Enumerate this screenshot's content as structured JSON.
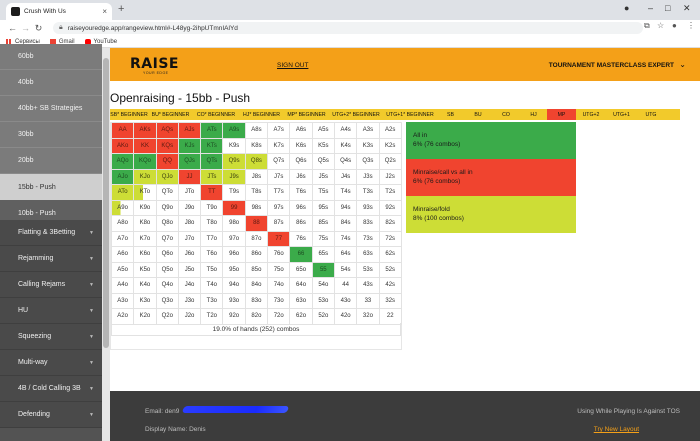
{
  "browser": {
    "tab_title": "Crush With Us",
    "tab_close": "×",
    "new_tab": "+",
    "url": "raiseyouredge.app/rangeview.html#-L48yg-2ihpUTmnIAlYd",
    "bookmarks": [
      "Сервисы",
      "Gmail",
      "YouTube"
    ]
  },
  "sidebar": {
    "items": [
      {
        "label": "60bb",
        "kind": "sub"
      },
      {
        "label": "40bb",
        "kind": "sub"
      },
      {
        "label": "40bb+ SB Strategies",
        "kind": "sub"
      },
      {
        "label": "30bb",
        "kind": "sub"
      },
      {
        "label": "20bb",
        "kind": "sub"
      },
      {
        "label": "15bb - Push",
        "kind": "active"
      },
      {
        "label": "10bb - Push",
        "kind": "dark"
      },
      {
        "label": "Flatting & 3Betting",
        "kind": "main"
      },
      {
        "label": "Rejamming",
        "kind": "main"
      },
      {
        "label": "Calling Rejams",
        "kind": "main"
      },
      {
        "label": "HU",
        "kind": "main"
      },
      {
        "label": "Squeezing",
        "kind": "main"
      },
      {
        "label": "Multi-way",
        "kind": "main"
      },
      {
        "label": "4B / Cold Calling 3B",
        "kind": "main"
      },
      {
        "label": "Defending",
        "kind": "main"
      }
    ]
  },
  "header": {
    "logo_text": "RAISE",
    "logo_sub": "YOUR EDGE",
    "signout": "SIGN OUT",
    "menu": "TOURNAMENT MASTERCLASS EXPERT"
  },
  "main": {
    "title": "Openraising - 15bb - Push",
    "positions": [
      {
        "label": "SB* BEGINNER",
        "w": 38
      },
      {
        "label": "BU* BEGINNER",
        "w": 45
      },
      {
        "label": "CO* BEGINNER",
        "w": 46
      },
      {
        "label": "HJ* BEGINNER",
        "w": 45
      },
      {
        "label": "MP* BEGINNER",
        "w": 45
      },
      {
        "label": "UTG+2* BEGINNER",
        "w": 54
      },
      {
        "label": "UTG+1* BEGINNER",
        "w": 54
      },
      {
        "label": "SB",
        "w": 27
      },
      {
        "label": "BU",
        "w": 28
      },
      {
        "label": "CO",
        "w": 28
      },
      {
        "label": "HJ",
        "w": 27
      },
      {
        "label": "MP",
        "w": 29,
        "active": true
      },
      {
        "label": "UTG+2",
        "w": 30
      },
      {
        "label": "UTG+1",
        "w": 31
      },
      {
        "label": "UTG",
        "w": 28
      }
    ],
    "summary": "19.0% of hands (252) combos"
  },
  "grid": [
    [
      "AA",
      "AKs",
      "AQs",
      "AJs",
      "ATs",
      "A9s",
      "A8s",
      "A7s",
      "A6s",
      "A5s",
      "A4s",
      "A3s",
      "A2s"
    ],
    [
      "AKo",
      "KK",
      "KQs",
      "KJs",
      "KTs",
      "K9s",
      "K8s",
      "K7s",
      "K6s",
      "K5s",
      "K4s",
      "K3s",
      "K2s"
    ],
    [
      "AQo",
      "KQo",
      "QQ",
      "QJs",
      "QTs",
      "Q9s",
      "Q8s",
      "Q7s",
      "Q6s",
      "Q5s",
      "Q4s",
      "Q3s",
      "Q2s"
    ],
    [
      "AJo",
      "KJo",
      "QJo",
      "JJ",
      "JTs",
      "J9s",
      "J8s",
      "J7s",
      "J6s",
      "J5s",
      "J4s",
      "J3s",
      "J2s"
    ],
    [
      "ATo",
      "KTo",
      "QTo",
      "JTo",
      "TT",
      "T9s",
      "T8s",
      "T7s",
      "T6s",
      "T5s",
      "T4s",
      "T3s",
      "T2s"
    ],
    [
      "A9o",
      "K9o",
      "Q9o",
      "J9o",
      "T9o",
      "99",
      "98s",
      "97s",
      "96s",
      "95s",
      "94s",
      "93s",
      "92s"
    ],
    [
      "A8o",
      "K8o",
      "Q8o",
      "J8o",
      "T8o",
      "98o",
      "88",
      "87s",
      "86s",
      "85s",
      "84s",
      "83s",
      "82s"
    ],
    [
      "A7o",
      "K7o",
      "Q7o",
      "J7o",
      "T7o",
      "97o",
      "87o",
      "77",
      "76s",
      "75s",
      "74s",
      "73s",
      "72s"
    ],
    [
      "A6o",
      "K6o",
      "Q6o",
      "J6o",
      "T6o",
      "96o",
      "86o",
      "76o",
      "66",
      "65s",
      "64s",
      "63s",
      "62s"
    ],
    [
      "A5o",
      "K5o",
      "Q5o",
      "J5o",
      "T5o",
      "95o",
      "85o",
      "75o",
      "65o",
      "55",
      "54s",
      "53s",
      "52s"
    ],
    [
      "A4o",
      "K4o",
      "Q4o",
      "J4o",
      "T4o",
      "94o",
      "84o",
      "74o",
      "64o",
      "54o",
      "44",
      "43s",
      "42s"
    ],
    [
      "A3o",
      "K3o",
      "Q3o",
      "J3o",
      "T3o",
      "93o",
      "83o",
      "73o",
      "63o",
      "53o",
      "43o",
      "33",
      "32s"
    ],
    [
      "A2o",
      "K2o",
      "Q2o",
      "J2o",
      "T2o",
      "92o",
      "82o",
      "72o",
      "62o",
      "52o",
      "42o",
      "32o",
      "22"
    ]
  ],
  "grid_colors": [
    [
      "r",
      "r",
      "r",
      "r",
      "g",
      "g",
      "w",
      "w",
      "w",
      "w",
      "w",
      "w",
      "w"
    ],
    [
      "r",
      "r",
      "r",
      "g",
      "g",
      "w",
      "w",
      "w",
      "w",
      "w",
      "w",
      "w",
      "w"
    ],
    [
      "g",
      "g",
      "r",
      "g",
      "g",
      "y",
      "y",
      "w",
      "w",
      "w",
      "w",
      "w",
      "w"
    ],
    [
      "g",
      "y",
      "y",
      "r",
      "y",
      "y",
      "w",
      "w",
      "w",
      "w",
      "w",
      "w",
      "w"
    ],
    [
      "y",
      "yw",
      "w",
      "w",
      "r",
      "w",
      "w",
      "w",
      "w",
      "w",
      "w",
      "w",
      "w"
    ],
    [
      "yw",
      "w",
      "w",
      "w",
      "w",
      "r",
      "w",
      "w",
      "w",
      "w",
      "w",
      "w",
      "w"
    ],
    [
      "w",
      "w",
      "w",
      "w",
      "w",
      "w",
      "r",
      "w",
      "w",
      "w",
      "w",
      "w",
      "w"
    ],
    [
      "w",
      "w",
      "w",
      "w",
      "w",
      "w",
      "w",
      "r",
      "w",
      "w",
      "w",
      "w",
      "w"
    ],
    [
      "w",
      "w",
      "w",
      "w",
      "w",
      "w",
      "w",
      "w",
      "g",
      "w",
      "w",
      "w",
      "w"
    ],
    [
      "w",
      "w",
      "w",
      "w",
      "w",
      "w",
      "w",
      "w",
      "w",
      "g",
      "w",
      "w",
      "w"
    ],
    [
      "w",
      "w",
      "w",
      "w",
      "w",
      "w",
      "w",
      "w",
      "w",
      "w",
      "w",
      "w",
      "w"
    ],
    [
      "w",
      "w",
      "w",
      "w",
      "w",
      "w",
      "w",
      "w",
      "w",
      "w",
      "w",
      "w",
      "w"
    ],
    [
      "w",
      "w",
      "w",
      "w",
      "w",
      "w",
      "w",
      "w",
      "w",
      "w",
      "w",
      "w",
      "w"
    ]
  ],
  "legend": [
    {
      "line1": "All in",
      "line2": "6% (76 combos)",
      "color": "#3bab4a"
    },
    {
      "line1": "Minraise/call vs all in",
      "line2": "6% (76 combos)",
      "color": "#f0442f"
    },
    {
      "line1": "Minraise/fold",
      "line2": "8% (100 combos)",
      "color": "#cddd36"
    }
  ],
  "footer": {
    "email_label": "Email: den9",
    "name": "Display Name: Denis",
    "tos": "Using While Playing Is Against TOS",
    "new_layout": "Try New Layout"
  },
  "colors": {
    "accent": "#f4a018",
    "green": "#3bab4a",
    "red": "#f0442f",
    "yellow": "#cddd36"
  }
}
